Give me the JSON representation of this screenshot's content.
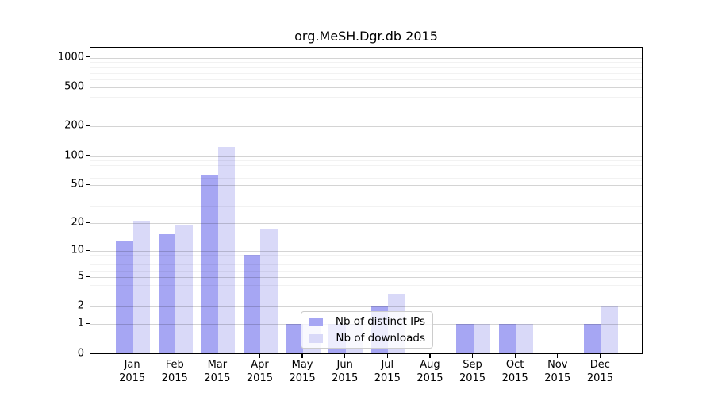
{
  "chart_data": {
    "type": "bar",
    "title": "org.MeSH.Dgr.db 2015",
    "categories": [
      "Jan",
      "Feb",
      "Mar",
      "Apr",
      "May",
      "Jun",
      "Jul",
      "Aug",
      "Sep",
      "Oct",
      "Nov",
      "Dec"
    ],
    "x_year_label": "2015",
    "series": [
      {
        "name": "Nb of distinct IPs",
        "color": "#a6a6f3",
        "values": [
          13,
          15,
          64,
          9,
          1,
          1,
          2,
          0,
          1,
          1,
          0,
          1
        ]
      },
      {
        "name": "Nb of downloads",
        "color": "#d9d9f8",
        "values": [
          21,
          19,
          122,
          17,
          1,
          1,
          3,
          0,
          1,
          1,
          0,
          2
        ]
      }
    ],
    "xlabel": "",
    "ylabel": "",
    "yscale": "log10(1+value)",
    "yticks": [
      0,
      1,
      2,
      5,
      10,
      20,
      50,
      100,
      200,
      500,
      1000
    ],
    "ylim": [
      0,
      1290
    ],
    "grid": "horizontal major and minor gridlines, drawn over bars",
    "legend_position": "inset lower-center of plot"
  },
  "colors": {
    "background": "#ffffff",
    "spine": "#000000",
    "gridline_major": "#d4d4d4",
    "gridline_minor": "#f2f2f2",
    "legend_border": "#cccccc",
    "legend_background": "rgba(255,255,255,0.8)",
    "text": "#000000"
  }
}
